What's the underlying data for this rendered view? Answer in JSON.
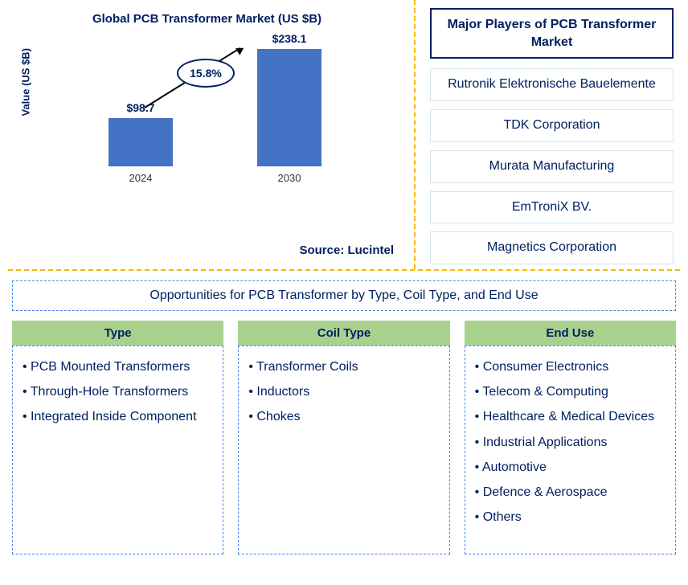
{
  "chart": {
    "title": "Global PCB Transformer Market (US $B)",
    "ylabel": "Value (US $B)",
    "type": "bar",
    "categories": [
      "2024",
      "2030"
    ],
    "values": [
      98.7,
      238.1
    ],
    "value_labels": [
      "$98.7",
      "$238.1"
    ],
    "bar_color": "#4472c4",
    "cagr": "15.8%",
    "ylim": [
      0,
      260
    ],
    "background_color": "#ffffff"
  },
  "source": "Source: Lucintel",
  "players_title": "Major Players of PCB Transformer Market",
  "players": [
    "Rutronik Elektronische Bauelemente",
    "TDK Corporation",
    "Murata Manufacturing",
    "EmTroniX BV.",
    "Magnetics Corporation"
  ],
  "opps_title": "Opportunities for PCB Transformer by Type, Coil Type, and End Use",
  "columns": [
    {
      "header": "Type",
      "items": [
        "PCB Mounted Transformers",
        "Through-Hole Transformers",
        "Integrated Inside Component"
      ]
    },
    {
      "header": "Coil Type",
      "items": [
        "Transformer Coils",
        "Inductors",
        "Chokes"
      ]
    },
    {
      "header": "End Use",
      "items": [
        "Consumer Electronics",
        "Telecom & Computing",
        "Healthcare & Medical Devices",
        "Industrial Applications",
        "Automotive",
        "Defence & Aerospace",
        "Others"
      ]
    }
  ]
}
